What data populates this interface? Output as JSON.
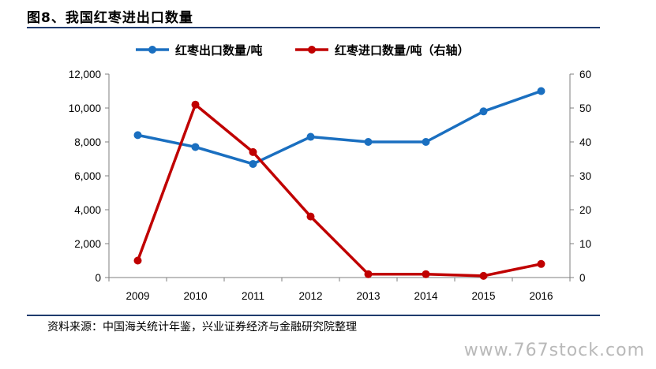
{
  "figure": {
    "title": "图8、我国红枣进出口数量",
    "source": "资料来源：中国海关统计年鉴，兴业证券经济与金融研究院整理",
    "watermark": "www.767stock.com"
  },
  "chart_data": {
    "type": "line",
    "categories": [
      "2009",
      "2010",
      "2011",
      "2012",
      "2013",
      "2014",
      "2015",
      "2016"
    ],
    "series": [
      {
        "name": "红枣出口数量/吨",
        "axis": "left",
        "color": "#1a6fc0",
        "values": [
          8400,
          7700,
          6700,
          8300,
          8000,
          8000,
          9800,
          11000
        ]
      },
      {
        "name": "红枣进口数量/吨（右轴）",
        "axis": "right",
        "color": "#c00000",
        "values": [
          5,
          51,
          37,
          18,
          1,
          1,
          0.5,
          4
        ]
      }
    ],
    "y_left": {
      "min": 0,
      "max": 12000,
      "ticks": [
        "0",
        "2,000",
        "4,000",
        "6,000",
        "8,000",
        "10,000",
        "12,000"
      ]
    },
    "y_right": {
      "min": 0,
      "max": 60,
      "ticks": [
        "0",
        "10",
        "20",
        "30",
        "40",
        "50",
        "60"
      ]
    },
    "legend_position": "top",
    "grid": false
  }
}
